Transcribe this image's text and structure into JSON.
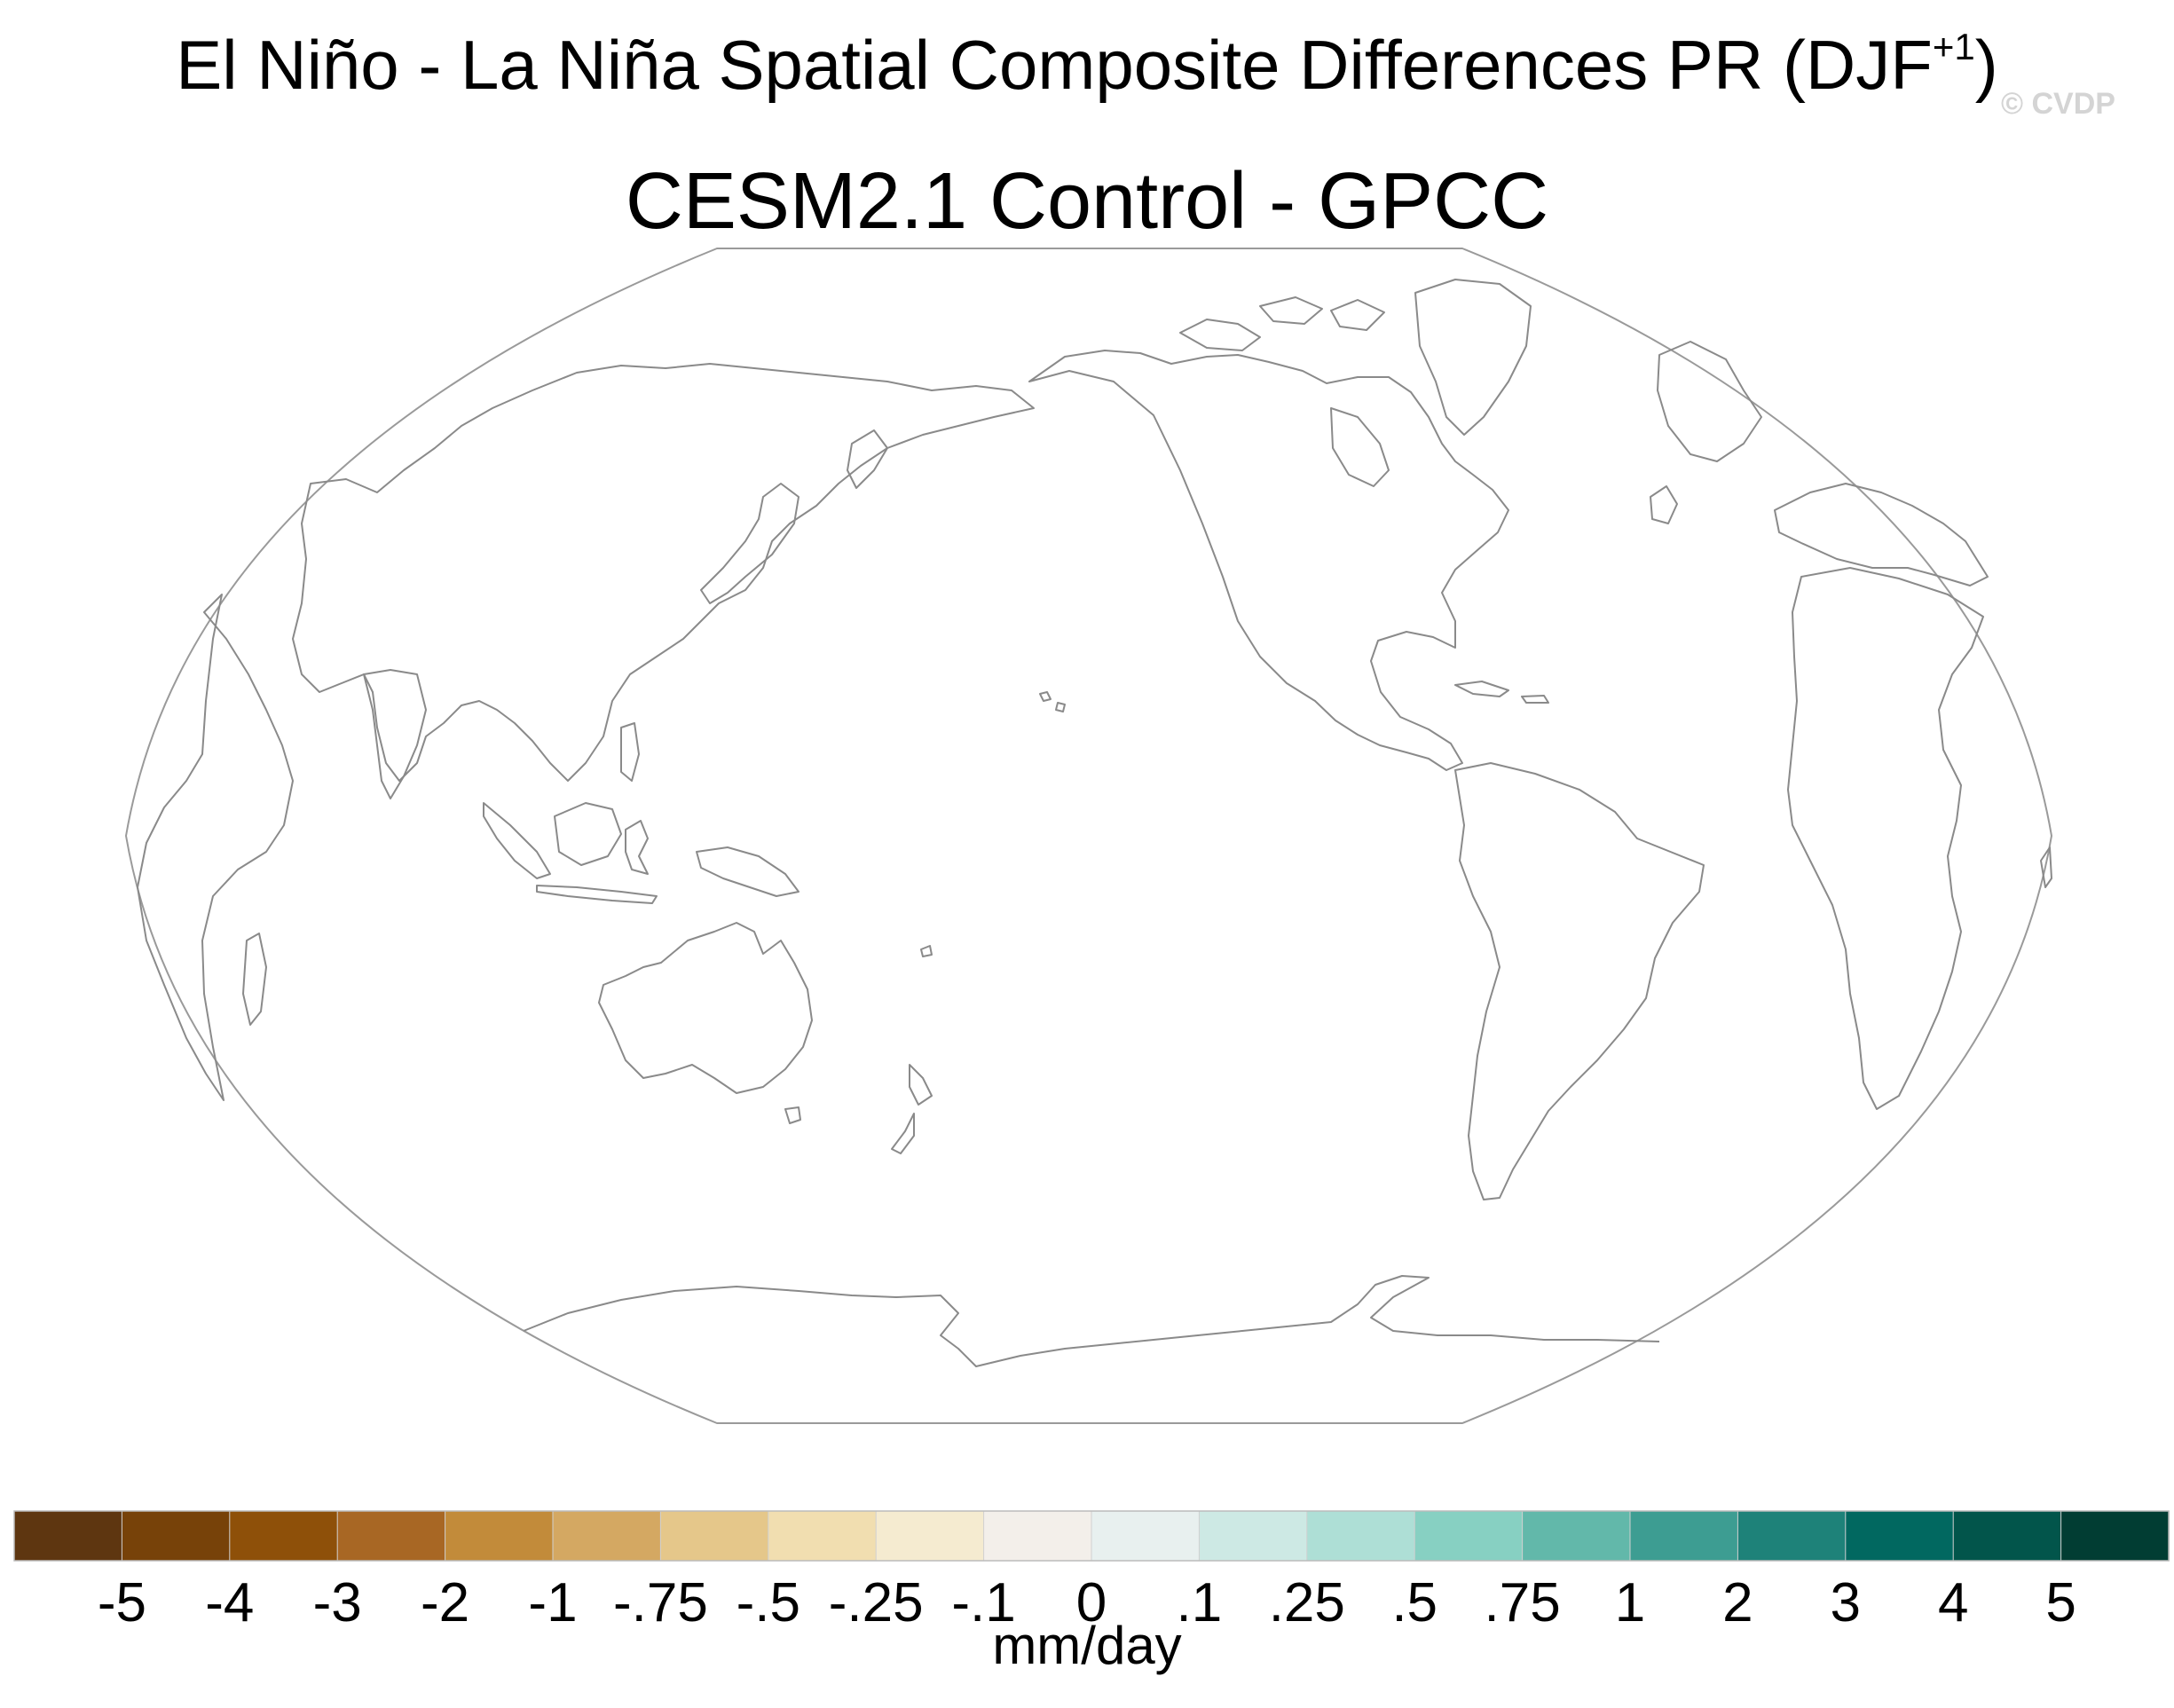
{
  "title": {
    "main_prefix": "El Niño - La Niña Spatial Composite Differences PR (DJF",
    "main_sup": "+1",
    "main_suffix": ")",
    "subtitle": "CESM2.1 Control - GPCC",
    "watermark": "© CVDP"
  },
  "map": {
    "projection": "robinson-like, Pacific-centered",
    "fill": "none",
    "outline_color": "#9a9a9a",
    "coast_color": "#8a8a8a"
  },
  "colorbar": {
    "units": "mm/day",
    "colors": [
      "#5e3610",
      "#774209",
      "#8e5009",
      "#a86724",
      "#c28b3a",
      "#d4a862",
      "#e5c78a",
      "#f1deb0",
      "#f5ebd0",
      "#f3efea",
      "#e8f0ef",
      "#cde9e4",
      "#aedfd6",
      "#87d0c2",
      "#62b8aa",
      "#3d9d92",
      "#1e8279",
      "#016860",
      "#02554b",
      "#013d33"
    ],
    "labels": [
      "-5",
      "-4",
      "-3",
      "-2",
      "-1",
      "-.75",
      "-.5",
      "-.25",
      "-.1",
      "0",
      ".1",
      ".25",
      ".5",
      ".75",
      "1",
      "2",
      "3",
      "4",
      "5"
    ]
  }
}
